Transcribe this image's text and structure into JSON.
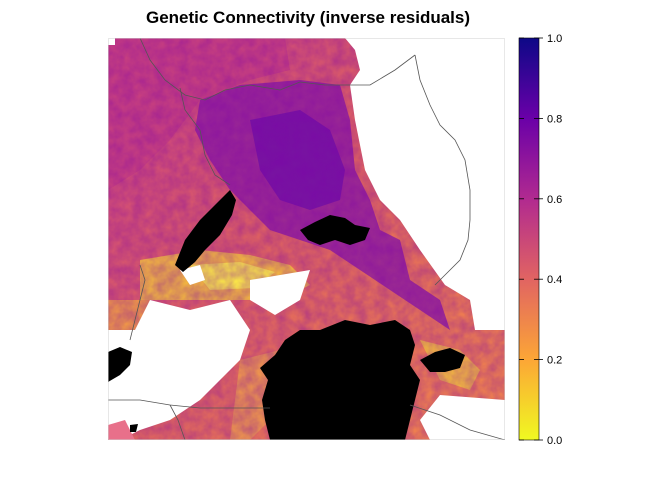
{
  "title": "Genetic Connectivity (inverse residuals)",
  "colorbar": {
    "min": 0.0,
    "max": 1.0,
    "ticks": [
      {
        "value": 0.0,
        "label": "0.0"
      },
      {
        "value": 0.2,
        "label": "0.2"
      },
      {
        "value": 0.4,
        "label": "0.4"
      },
      {
        "value": 0.6,
        "label": "0.6"
      },
      {
        "value": 0.8,
        "label": "0.8"
      },
      {
        "value": 1.0,
        "label": "1.0"
      }
    ],
    "palette": "plasma (reversed)",
    "palette_stops": [
      "#f0f921",
      "#fca636",
      "#e16462",
      "#b12a90",
      "#6a00a8",
      "#0d0887"
    ]
  },
  "map": {
    "water_color": "#000000",
    "no_data_color": "#ffffff",
    "border_color": "#555555"
  }
}
